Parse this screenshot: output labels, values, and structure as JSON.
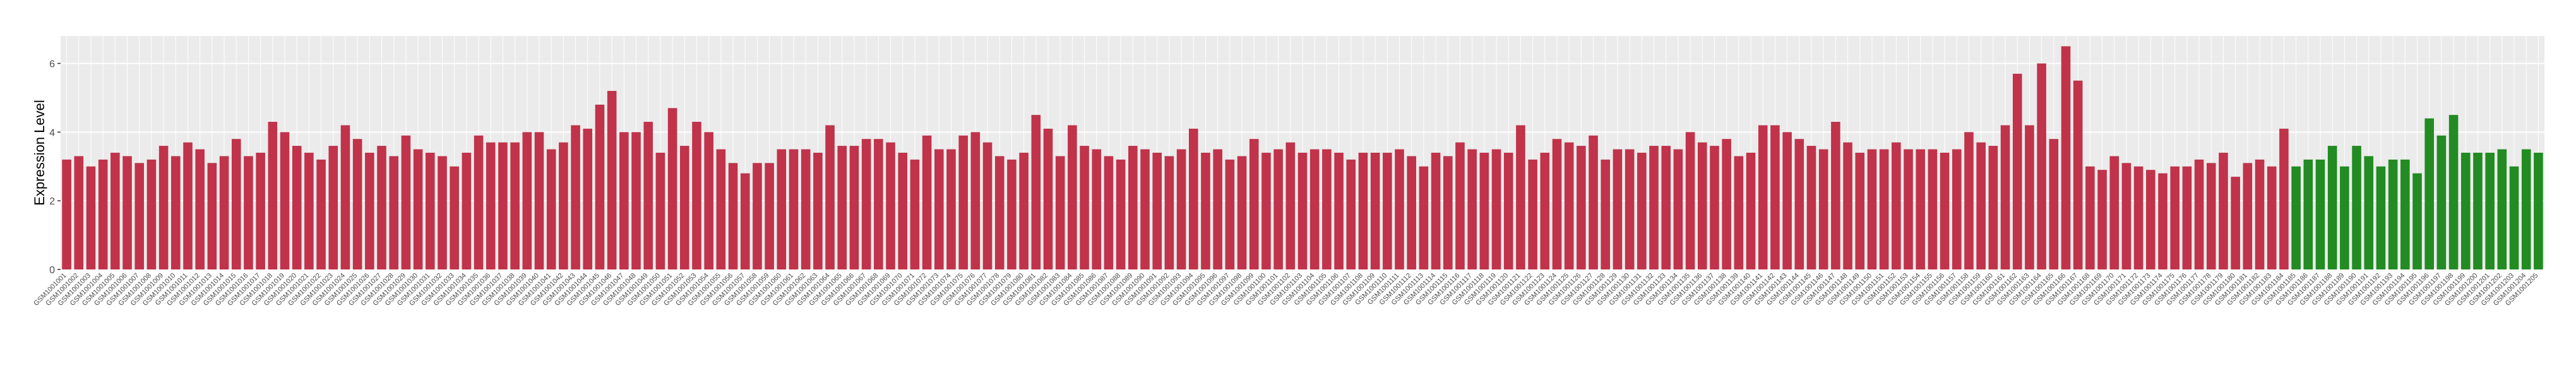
{
  "chart_data": {
    "type": "bar",
    "y_label": "Expression Level",
    "ylim": [
      0,
      6.8
    ],
    "yticks": [
      0,
      2,
      4,
      6
    ],
    "grid": true,
    "categories": [
      "GSM1001001",
      "GSM1001002",
      "GSM1001003",
      "GSM1001004",
      "GSM1001005",
      "GSM1001006",
      "GSM1001007",
      "GSM1001008",
      "GSM1001009",
      "GSM1001010",
      "GSM1001011",
      "GSM1001012",
      "GSM1001013",
      "GSM1001014",
      "GSM1001015",
      "GSM1001016",
      "GSM1001017",
      "GSM1001018",
      "GSM1001019",
      "GSM1001020",
      "GSM1001021",
      "GSM1001022",
      "GSM1001023",
      "GSM1001024",
      "GSM1001025",
      "GSM1001026",
      "GSM1001027",
      "GSM1001028",
      "GSM1001029",
      "GSM1001030",
      "GSM1001031",
      "GSM1001032",
      "GSM1001033",
      "GSM1001034",
      "GSM1001035",
      "GSM1001036",
      "GSM1001037",
      "GSM1001038",
      "GSM1001039",
      "GSM1001040",
      "GSM1001041",
      "GSM1001042",
      "GSM1001043",
      "GSM1001044",
      "GSM1001045",
      "GSM1001046",
      "GSM1001047",
      "GSM1001048",
      "GSM1001049",
      "GSM1001050",
      "GSM1001051",
      "GSM1001052",
      "GSM1001053",
      "GSM1001054",
      "GSM1001055",
      "GSM1001056",
      "GSM1001057",
      "GSM1001058",
      "GSM1001059",
      "GSM1001060",
      "GSM1001061",
      "GSM1001062",
      "GSM1001063",
      "GSM1001064",
      "GSM1001065",
      "GSM1001066",
      "GSM1001067",
      "GSM1001068",
      "GSM1001069",
      "GSM1001070",
      "GSM1001071",
      "GSM1001072",
      "GSM1001073",
      "GSM1001074",
      "GSM1001075",
      "GSM1001076",
      "GSM1001077",
      "GSM1001078",
      "GSM1001079",
      "GSM1001080",
      "GSM1001081",
      "GSM1001082",
      "GSM1001083",
      "GSM1001084",
      "GSM1001085",
      "GSM1001086",
      "GSM1001087",
      "GSM1001088",
      "GSM1001089",
      "GSM1001090",
      "GSM1001091",
      "GSM1001092",
      "GSM1001093",
      "GSM1001094",
      "GSM1001095",
      "GSM1001096",
      "GSM1001097",
      "GSM1001098",
      "GSM1001099",
      "GSM1001100",
      "GSM1001101",
      "GSM1001102",
      "GSM1001103",
      "GSM1001104",
      "GSM1001105",
      "GSM1001106",
      "GSM1001107",
      "GSM1001108",
      "GSM1001109",
      "GSM1001110",
      "GSM1001111",
      "GSM1001112",
      "GSM1001113",
      "GSM1001114",
      "GSM1001115",
      "GSM1001116",
      "GSM1001117",
      "GSM1001118",
      "GSM1001119",
      "GSM1001120",
      "GSM1001121",
      "GSM1001122",
      "GSM1001123",
      "GSM1001124",
      "GSM1001125",
      "GSM1001126",
      "GSM1001127",
      "GSM1001128",
      "GSM1001129",
      "GSM1001130",
      "GSM1001131",
      "GSM1001132",
      "GSM1001133",
      "GSM1001134",
      "GSM1001135",
      "GSM1001136",
      "GSM1001137",
      "GSM1001138",
      "GSM1001139",
      "GSM1001140",
      "GSM1001141",
      "GSM1001142",
      "GSM1001143",
      "GSM1001144",
      "GSM1001145",
      "GSM1001146",
      "GSM1001147",
      "GSM1001148",
      "GSM1001149",
      "GSM1001150",
      "GSM1001151",
      "GSM1001152",
      "GSM1001153",
      "GSM1001154",
      "GSM1001155",
      "GSM1001156",
      "GSM1001157",
      "GSM1001158",
      "GSM1001159",
      "GSM1001160",
      "GSM1001161",
      "GSM1001162",
      "GSM1001163",
      "GSM1001164",
      "GSM1001165",
      "GSM1001166",
      "GSM1001167",
      "GSM1001168",
      "GSM1001169",
      "GSM1001170",
      "GSM1001171",
      "GSM1001172",
      "GSM1001173",
      "GSM1001174",
      "GSM1001175",
      "GSM1001176",
      "GSM1001177",
      "GSM1001178",
      "GSM1001179",
      "GSM1001180",
      "GSM1001181",
      "GSM1001182",
      "GSM1001183",
      "GSM1001184",
      "GSM1001185",
      "GSM1001186",
      "GSM1001187",
      "GSM1001188",
      "GSM1001189",
      "GSM1001190",
      "GSM1001191",
      "GSM1001192",
      "GSM1001193",
      "GSM1001194",
      "GSM1001195",
      "GSM1001196",
      "GSM1001197",
      "GSM1001198",
      "GSM1001199",
      "GSM1001200",
      "GSM1001201",
      "GSM1001202",
      "GSM1001203",
      "GSM1001204",
      "GSM1001205"
    ],
    "values": [
      3.2,
      3.3,
      3.0,
      3.2,
      3.4,
      3.3,
      3.1,
      3.2,
      3.6,
      3.3,
      3.7,
      3.5,
      3.1,
      3.3,
      3.8,
      3.3,
      3.4,
      4.3,
      4.0,
      3.6,
      3.4,
      3.2,
      3.6,
      4.2,
      3.8,
      3.4,
      3.6,
      3.3,
      3.9,
      3.5,
      3.4,
      3.3,
      3.0,
      3.4,
      3.9,
      3.7,
      3.7,
      3.7,
      4.0,
      4.0,
      3.5,
      3.7,
      4.2,
      4.1,
      4.8,
      5.2,
      4.0,
      4.0,
      4.3,
      3.4,
      4.7,
      3.6,
      4.3,
      4.0,
      3.5,
      3.1,
      2.8,
      3.1,
      3.1,
      3.5,
      3.5,
      3.5,
      3.4,
      4.2,
      3.6,
      3.6,
      3.8,
      3.8,
      3.7,
      3.4,
      3.2,
      3.9,
      3.5,
      3.5,
      3.9,
      4.0,
      3.7,
      3.3,
      3.2,
      3.4,
      4.5,
      4.1,
      3.3,
      4.2,
      3.6,
      3.5,
      3.3,
      3.2,
      3.6,
      3.5,
      3.4,
      3.3,
      3.5,
      4.1,
      3.4,
      3.5,
      3.2,
      3.3,
      3.8,
      3.4,
      3.5,
      3.7,
      3.4,
      3.5,
      3.5,
      3.4,
      3.2,
      3.4,
      3.4,
      3.4,
      3.5,
      3.3,
      3.0,
      3.4,
      3.3,
      3.7,
      3.5,
      3.4,
      3.5,
      3.4,
      4.2,
      3.2,
      3.4,
      3.8,
      3.7,
      3.6,
      3.9,
      3.2,
      3.5,
      3.5,
      3.4,
      3.6,
      3.6,
      3.5,
      4.0,
      3.7,
      3.6,
      3.8,
      3.3,
      3.4,
      4.2,
      4.2,
      4.0,
      3.8,
      3.6,
      3.5,
      4.3,
      3.7,
      3.4,
      3.5,
      3.5,
      3.7,
      3.5,
      3.5,
      3.5,
      3.4,
      3.5,
      4.0,
      3.7,
      3.6,
      4.2,
      5.7,
      4.2,
      6.0,
      3.8,
      6.5,
      5.5,
      3.0,
      2.9,
      3.3,
      3.1,
      3.0,
      2.9,
      2.8,
      3.0,
      3.0,
      3.2,
      3.1,
      3.4,
      2.7,
      3.1,
      3.2,
      3.0,
      4.1,
      3.0,
      3.2,
      3.2,
      3.6,
      3.0,
      3.6,
      3.3,
      3.0,
      3.2,
      3.2,
      2.8,
      4.4,
      3.9,
      4.5,
      3.4,
      3.4,
      3.4,
      3.5,
      3.0,
      3.5,
      3.4
    ],
    "colors": [
      "#c0334a",
      "#c0334a",
      "#c0334a",
      "#c0334a",
      "#c0334a",
      "#c0334a",
      "#c0334a",
      "#c0334a",
      "#c0334a",
      "#c0334a",
      "#c0334a",
      "#c0334a",
      "#c0334a",
      "#c0334a",
      "#c0334a",
      "#c0334a",
      "#c0334a",
      "#c0334a",
      "#c0334a",
      "#c0334a",
      "#c0334a",
      "#c0334a",
      "#c0334a",
      "#c0334a",
      "#c0334a",
      "#c0334a",
      "#c0334a",
      "#c0334a",
      "#c0334a",
      "#c0334a",
      "#c0334a",
      "#c0334a",
      "#c0334a",
      "#c0334a",
      "#c0334a",
      "#c0334a",
      "#c0334a",
      "#c0334a",
      "#c0334a",
      "#c0334a",
      "#c0334a",
      "#c0334a",
      "#c0334a",
      "#c0334a",
      "#c0334a",
      "#c0334a",
      "#c0334a",
      "#c0334a",
      "#c0334a",
      "#c0334a",
      "#c0334a",
      "#c0334a",
      "#c0334a",
      "#c0334a",
      "#c0334a",
      "#c0334a",
      "#c0334a",
      "#c0334a",
      "#c0334a",
      "#c0334a",
      "#c0334a",
      "#c0334a",
      "#c0334a",
      "#c0334a",
      "#c0334a",
      "#c0334a",
      "#c0334a",
      "#c0334a",
      "#c0334a",
      "#c0334a",
      "#c0334a",
      "#c0334a",
      "#c0334a",
      "#c0334a",
      "#c0334a",
      "#c0334a",
      "#c0334a",
      "#c0334a",
      "#c0334a",
      "#c0334a",
      "#c0334a",
      "#c0334a",
      "#c0334a",
      "#c0334a",
      "#c0334a",
      "#c0334a",
      "#c0334a",
      "#c0334a",
      "#c0334a",
      "#c0334a",
      "#c0334a",
      "#c0334a",
      "#c0334a",
      "#c0334a",
      "#c0334a",
      "#c0334a",
      "#c0334a",
      "#c0334a",
      "#c0334a",
      "#c0334a",
      "#c0334a",
      "#c0334a",
      "#c0334a",
      "#c0334a",
      "#c0334a",
      "#c0334a",
      "#c0334a",
      "#c0334a",
      "#c0334a",
      "#c0334a",
      "#c0334a",
      "#c0334a",
      "#c0334a",
      "#c0334a",
      "#c0334a",
      "#c0334a",
      "#c0334a",
      "#c0334a",
      "#c0334a",
      "#c0334a",
      "#c0334a",
      "#c0334a",
      "#c0334a",
      "#c0334a",
      "#c0334a",
      "#c0334a",
      "#c0334a",
      "#c0334a",
      "#c0334a",
      "#c0334a",
      "#c0334a",
      "#c0334a",
      "#c0334a",
      "#c0334a",
      "#c0334a",
      "#c0334a",
      "#c0334a",
      "#c0334a",
      "#c0334a",
      "#c0334a",
      "#c0334a",
      "#c0334a",
      "#c0334a",
      "#c0334a",
      "#c0334a",
      "#c0334a",
      "#c0334a",
      "#c0334a",
      "#c0334a",
      "#c0334a",
      "#c0334a",
      "#c0334a",
      "#c0334a",
      "#c0334a",
      "#c0334a",
      "#c0334a",
      "#c0334a",
      "#c0334a",
      "#c0334a",
      "#c0334a",
      "#c0334a",
      "#c0334a",
      "#c0334a",
      "#c0334a",
      "#c0334a",
      "#c0334a",
      "#c0334a",
      "#c0334a",
      "#c0334a",
      "#c0334a",
      "#c0334a",
      "#c0334a",
      "#c0334a",
      "#c0334a",
      "#c0334a",
      "#c0334a",
      "#c0334a",
      "#c0334a",
      "#c0334a",
      "#c0334a",
      "#c0334a",
      "#c0334a",
      "#c0334a",
      "#c0334a",
      "#228b22",
      "#228b22",
      "#228b22",
      "#228b22",
      "#228b22",
      "#228b22",
      "#228b22",
      "#228b22",
      "#228b22",
      "#228b22",
      "#228b22",
      "#228b22",
      "#228b22",
      "#228b22",
      "#228b22",
      "#228b22",
      "#228b22",
      "#228b22",
      "#228b22",
      "#228b22",
      "#228b22"
    ]
  }
}
